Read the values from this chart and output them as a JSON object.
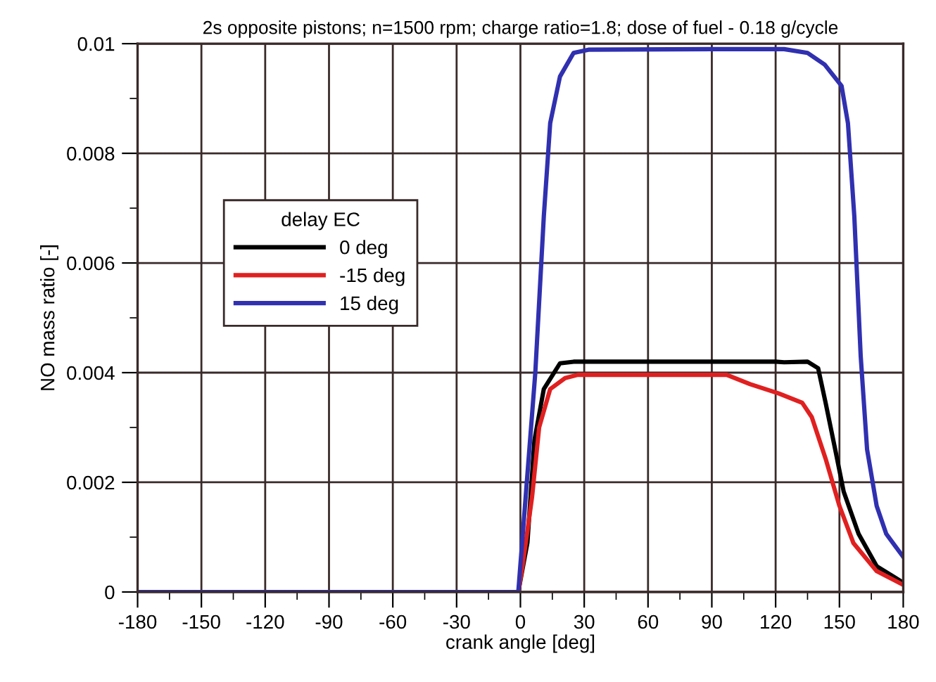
{
  "chart_data": {
    "type": "line",
    "title": "2s opposite pistons; n=1500 rpm; charge ratio=1.8; dose of fuel - 0.18 g/cycle",
    "xlabel": "crank angle [deg]",
    "ylabel": "NO mass ratio [-]",
    "legend_title": "delay EC",
    "legend": "left",
    "grid": true,
    "marker": "none",
    "line_style": "solid",
    "xlim": [
      -180,
      180
    ],
    "xticks": [
      -180,
      -150,
      -120,
      -90,
      -60,
      -30,
      0,
      30,
      60,
      90,
      120,
      150,
      180
    ],
    "ylim": [
      0,
      0.01
    ],
    "yticks": [
      0,
      0.002,
      0.004,
      0.006,
      0.008,
      0.01
    ],
    "series": [
      {
        "name": "0 deg",
        "color": "#000000",
        "x": [
          -180,
          -1,
          3.3,
          6.6,
          11,
          18.6,
          25,
          60,
          120,
          124,
          135,
          140,
          143.5,
          148,
          152,
          159,
          167.5,
          180
        ],
        "values": [
          0,
          0,
          0.0009,
          0.00277,
          0.0037,
          0.00417,
          0.0042,
          0.0042,
          0.0042,
          0.00419,
          0.0042,
          0.00408,
          0.00345,
          0.0026,
          0.00183,
          0.00106,
          0.00047,
          0.00017
        ]
      },
      {
        "name": "-15 deg",
        "color": "#e02020",
        "x": [
          -180,
          -1,
          1,
          5.5,
          8.8,
          14,
          21,
          27,
          60,
          97,
          108,
          121.5,
          132.5,
          137,
          143.5,
          150,
          156.6,
          167.5,
          180
        ],
        "values": [
          0,
          0,
          0.00047,
          0.00174,
          0.003,
          0.0037,
          0.0039,
          0.00396,
          0.00396,
          0.00396,
          0.00379,
          0.00362,
          0.00345,
          0.00319,
          0.00243,
          0.00157,
          0.00089,
          0.00038,
          0.00013
        ]
      },
      {
        "name": "15 deg",
        "color": "#3030b0",
        "x": [
          -180,
          -1,
          7,
          11,
          14,
          18.6,
          25,
          32,
          90,
          124,
          135,
          143,
          151,
          154,
          157,
          160,
          163,
          167.5,
          172,
          180
        ],
        "values": [
          0,
          0,
          0.004,
          0.00685,
          0.00855,
          0.0094,
          0.00983,
          0.00989,
          0.0099,
          0.0099,
          0.00983,
          0.00962,
          0.00923,
          0.00855,
          0.00685,
          0.0043,
          0.0026,
          0.00157,
          0.00106,
          0.00064
        ]
      }
    ]
  }
}
